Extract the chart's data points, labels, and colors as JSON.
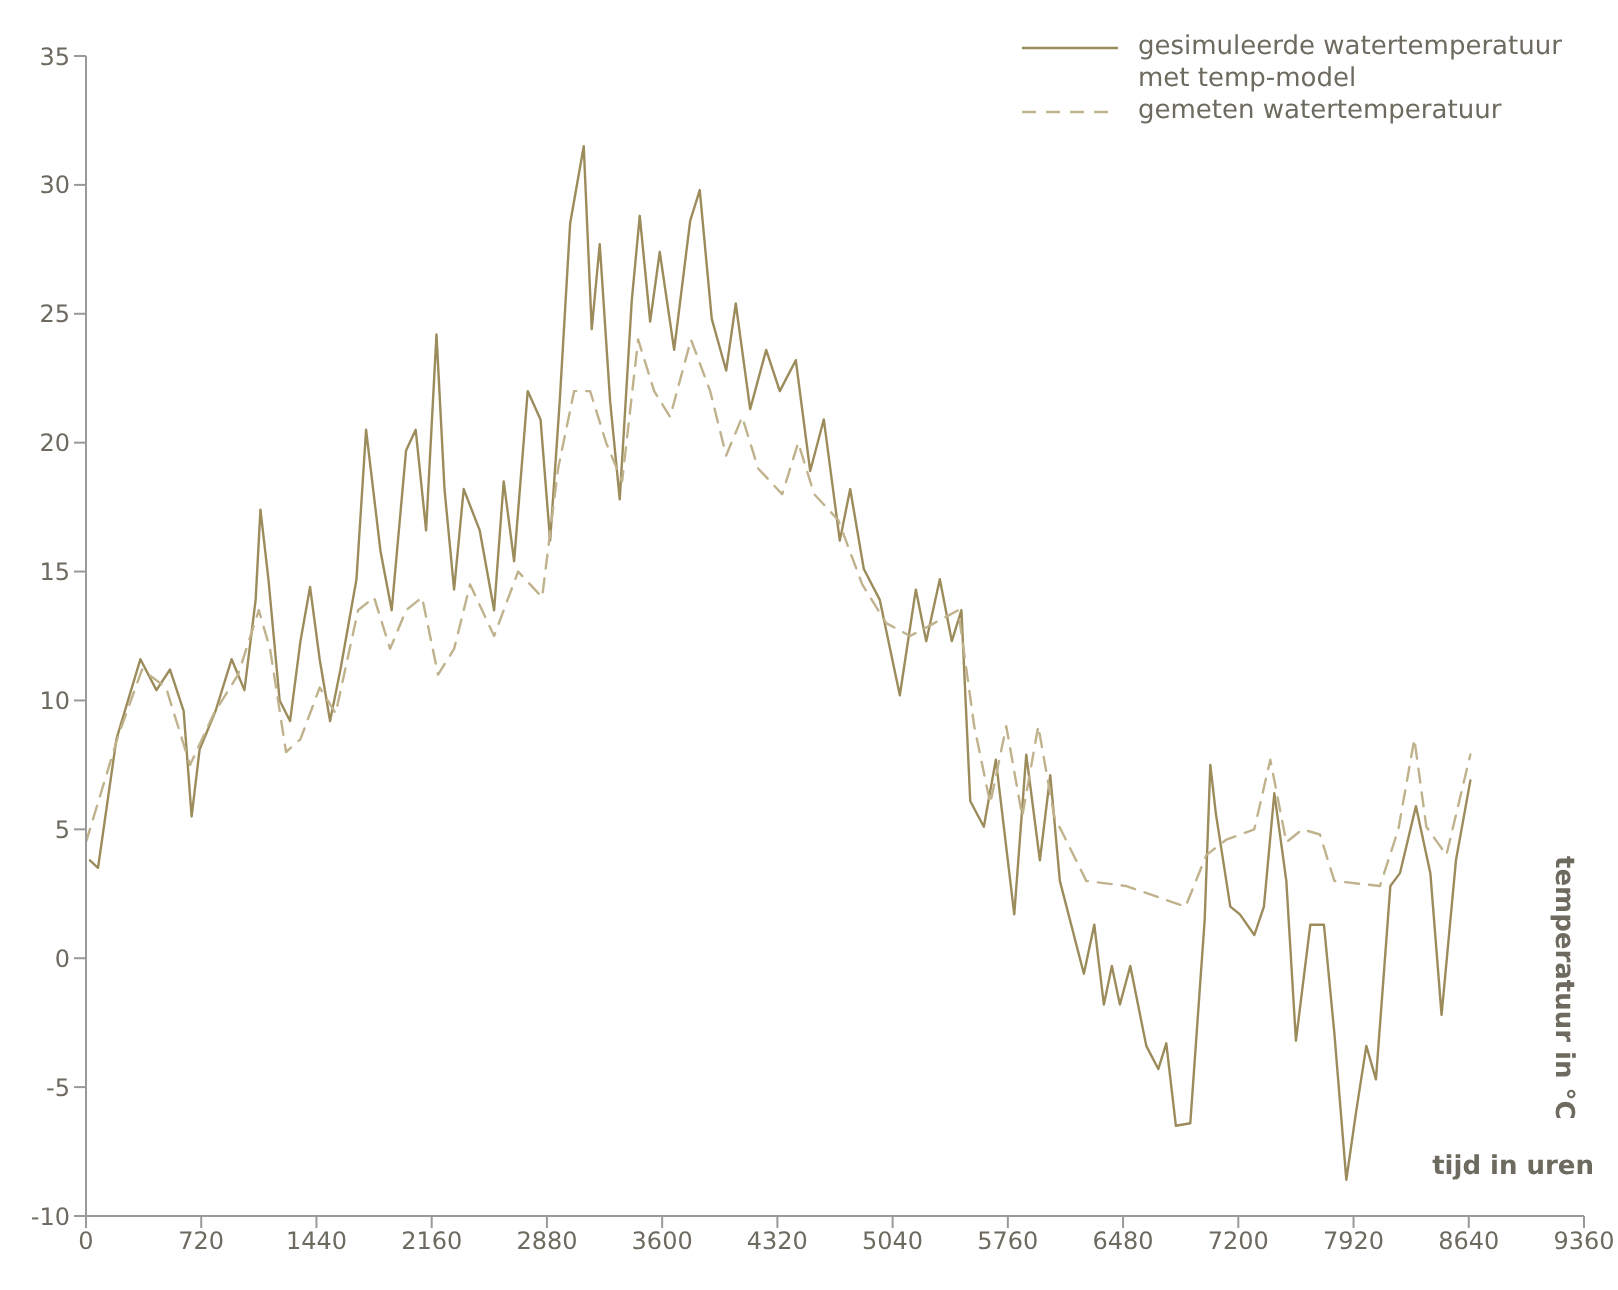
{
  "chart_data": {
    "type": "line",
    "annotations": [
      "temperatuur in °C",
      "tijd in uren"
    ],
    "xlim": [
      0,
      9360
    ],
    "xticks": [
      0,
      720,
      1440,
      2160,
      2880,
      3600,
      4320,
      5040,
      5760,
      6480,
      7200,
      7920,
      8640,
      9360
    ],
    "ylim": [
      -10,
      35
    ],
    "yticks": [
      -10,
      -5,
      0,
      5,
      10,
      15,
      20,
      25,
      30,
      35
    ],
    "grid": false,
    "legend": "top right",
    "marker": "none",
    "series": [
      {
        "name": "gesimuleerde watertemperatuur met temp-model",
        "color": "#9c8c5c",
        "line_style": "solid",
        "x": [
          25,
          75,
          190,
          340,
          440,
          525,
          610,
          660,
          710,
          810,
          910,
          990,
          1060,
          1090,
          1140,
          1210,
          1275,
          1340,
          1400,
          1460,
          1525,
          1590,
          1690,
          1750,
          1840,
          1910,
          2000,
          2060,
          2125,
          2190,
          2240,
          2300,
          2360,
          2460,
          2550,
          2610,
          2675,
          2760,
          2840,
          2900,
          2960,
          3025,
          3110,
          3160,
          3210,
          3275,
          3335,
          3410,
          3460,
          3525,
          3585,
          3675,
          3775,
          3835,
          3910,
          4000,
          4060,
          4150,
          4250,
          4335,
          4435,
          4525,
          4610,
          4710,
          4775,
          4860,
          4960,
          5085,
          5185,
          5250,
          5335,
          5410,
          5470,
          5525,
          5610,
          5685,
          5800,
          5875,
          5960,
          6025,
          6085,
          6235,
          6300,
          6360,
          6410,
          6460,
          6525,
          6625,
          6700,
          6750,
          6810,
          6900,
          6990,
          7025,
          7060,
          7150,
          7210,
          7300,
          7360,
          7425,
          7500,
          7560,
          7650,
          7735,
          7800,
          7875,
          7935,
          8000,
          8060,
          8150,
          8210,
          8310,
          8400,
          8470,
          8560,
          8650
        ],
        "values": [
          3.8,
          3.5,
          8.5,
          11.6,
          10.4,
          11.2,
          9.6,
          5.5,
          8.1,
          9.6,
          11.6,
          10.4,
          13.9,
          17.4,
          14.7,
          10.0,
          9.2,
          12.3,
          14.4,
          11.6,
          9.2,
          11.2,
          14.7,
          20.5,
          15.8,
          13.5,
          19.7,
          20.5,
          16.6,
          24.2,
          18.2,
          14.3,
          18.2,
          16.6,
          13.5,
          18.5,
          15.4,
          22.0,
          20.9,
          16.2,
          21.6,
          28.5,
          31.5,
          24.4,
          27.7,
          21.6,
          17.8,
          25.5,
          28.8,
          24.7,
          27.4,
          23.6,
          28.6,
          29.8,
          24.8,
          22.8,
          25.4,
          21.3,
          23.6,
          22.0,
          23.2,
          18.9,
          20.9,
          16.2,
          18.2,
          15.1,
          13.9,
          10.2,
          14.3,
          12.3,
          14.7,
          12.3,
          13.5,
          6.1,
          5.1,
          7.7,
          1.7,
          7.9,
          3.8,
          7.1,
          3.0,
          -0.6,
          1.3,
          -1.8,
          -0.3,
          -1.8,
          -0.3,
          -3.4,
          -4.3,
          -3.3,
          -6.5,
          -6.4,
          1.5,
          7.5,
          5.6,
          2.0,
          1.7,
          0.9,
          2.0,
          6.4,
          3.0,
          -3.2,
          1.3,
          1.3,
          -2.9,
          -8.6,
          -6.0,
          -3.4,
          -4.7,
          2.8,
          3.3,
          5.9,
          3.3,
          -2.2,
          3.8,
          6.9
        ]
      },
      {
        "name": "gemeten watertemperatuur",
        "color": "#bfb28c",
        "line_style": "dashed",
        "x": [
          0,
          200,
          350,
          500,
          650,
          800,
          950,
          1080,
          1150,
          1250,
          1340,
          1460,
          1560,
          1700,
          1800,
          1900,
          2000,
          2100,
          2200,
          2300,
          2400,
          2550,
          2700,
          2850,
          2950,
          3050,
          3150,
          3250,
          3350,
          3450,
          3550,
          3650,
          3780,
          3900,
          4000,
          4100,
          4200,
          4350,
          4450,
          4550,
          4700,
          4850,
          5000,
          5150,
          5300,
          5450,
          5550,
          5650,
          5750,
          5850,
          5950,
          6050,
          6250,
          6500,
          6870,
          7000,
          7125,
          7300,
          7400,
          7500,
          7600,
          7710,
          7800,
          8085,
          8200,
          8300,
          8375,
          8500,
          8650
        ],
        "values": [
          4.5,
          8.6,
          11.2,
          10.5,
          7.5,
          9.5,
          11.0,
          13.5,
          12.0,
          8.0,
          8.5,
          10.5,
          9.5,
          13.5,
          14.0,
          12.0,
          13.5,
          14.0,
          11.0,
          12.0,
          14.5,
          12.5,
          15.0,
          14.0,
          19.0,
          22.0,
          22.0,
          20.0,
          18.5,
          24.0,
          22.0,
          21.0,
          24.0,
          22.0,
          19.5,
          21.0,
          19.0,
          18.0,
          20.0,
          18.0,
          17.0,
          14.5,
          13.0,
          12.5,
          13.0,
          13.5,
          9.0,
          6.0,
          9.0,
          5.5,
          9.0,
          5.5,
          3.0,
          2.8,
          2.0,
          4.0,
          4.6,
          5.0,
          7.7,
          4.5,
          5.0,
          4.8,
          3.0,
          2.8,
          5.0,
          8.5,
          5.1,
          4.0,
          7.9
        ]
      }
    ]
  }
}
